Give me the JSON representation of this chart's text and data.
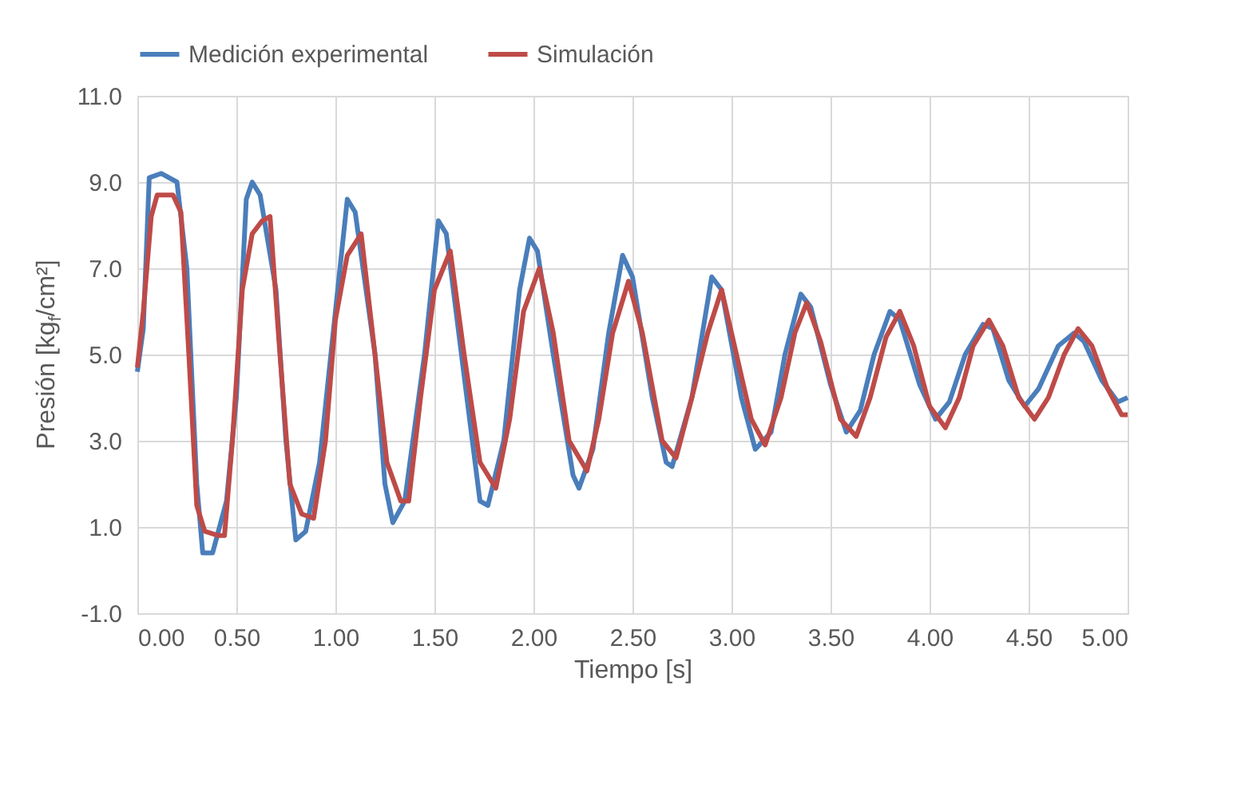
{
  "chart_data": {
    "type": "line",
    "xlabel": "Tiempo [s]",
    "ylabel": "Presión [kg$_{f}$/cm²]",
    "xlim": [
      0,
      5
    ],
    "ylim": [
      -1,
      11
    ],
    "xticks": [
      {
        "value": 0,
        "label": "0.00"
      },
      {
        "value": 0.5,
        "label": "0.50"
      },
      {
        "value": 1,
        "label": "1.00"
      },
      {
        "value": 1.5,
        "label": "1.50"
      },
      {
        "value": 2,
        "label": "2.00"
      },
      {
        "value": 2.5,
        "label": "2.50"
      },
      {
        "value": 3,
        "label": "3.00"
      },
      {
        "value": 3.5,
        "label": "3.50"
      },
      {
        "value": 4,
        "label": "4.00"
      },
      {
        "value": 4.5,
        "label": "4.50"
      },
      {
        "value": 5,
        "label": "5.00"
      }
    ],
    "yticks": [
      {
        "value": -1,
        "label": "-1.0"
      },
      {
        "value": 1,
        "label": "1.0"
      },
      {
        "value": 3,
        "label": "3.0"
      },
      {
        "value": 5,
        "label": "5.0"
      },
      {
        "value": 7,
        "label": "7.0"
      },
      {
        "value": 9,
        "label": "9.0"
      },
      {
        "value": 11,
        "label": "11.0"
      }
    ],
    "grid": true,
    "legend": "top",
    "marker": "none",
    "line_style": "solid",
    "series": [
      {
        "name": "Medición experimental",
        "color": "#4a7ebb",
        "x": [
          0,
          0.03,
          0.06,
          0.12,
          0.2,
          0.25,
          0.3,
          0.33,
          0.38,
          0.45,
          0.5,
          0.55,
          0.58,
          0.62,
          0.7,
          0.75,
          0.8,
          0.85,
          0.92,
          1.0,
          1.06,
          1.1,
          1.2,
          1.25,
          1.29,
          1.35,
          1.45,
          1.52,
          1.56,
          1.65,
          1.73,
          1.77,
          1.85,
          1.93,
          1.98,
          2.02,
          2.1,
          2.2,
          2.23,
          2.3,
          2.38,
          2.45,
          2.5,
          2.6,
          2.67,
          2.7,
          2.8,
          2.9,
          2.95,
          3.05,
          3.12,
          3.2,
          3.27,
          3.35,
          3.4,
          3.5,
          3.58,
          3.65,
          3.72,
          3.8,
          3.85,
          3.95,
          4.03,
          4.1,
          4.18,
          4.27,
          4.32,
          4.4,
          4.48,
          4.55,
          4.65,
          4.73,
          4.78,
          4.87,
          4.95,
          5.0
        ],
        "values": [
          4.6,
          5.6,
          9.1,
          9.2,
          9.0,
          7,
          2,
          0.4,
          0.4,
          1.6,
          4,
          8.6,
          9.0,
          8.7,
          6.5,
          3,
          0.7,
          0.9,
          2.5,
          6,
          8.6,
          8.3,
          5,
          2,
          1.1,
          1.6,
          5,
          8.1,
          7.8,
          4.5,
          1.6,
          1.5,
          3,
          6.5,
          7.7,
          7.4,
          5,
          2.2,
          1.9,
          2.8,
          5.5,
          7.3,
          6.8,
          4,
          2.5,
          2.4,
          4,
          6.8,
          6.5,
          4,
          2.8,
          3.2,
          5,
          6.4,
          6.1,
          4.3,
          3.2,
          3.7,
          5,
          6.0,
          5.8,
          4.3,
          3.5,
          3.9,
          5,
          5.7,
          5.6,
          4.4,
          3.8,
          4.2,
          5.2,
          5.5,
          5.3,
          4.4,
          3.9,
          4.0
        ]
      },
      {
        "name": "Simulación",
        "color": "#be4b48",
        "x": [
          0,
          0.03,
          0.07,
          0.1,
          0.18,
          0.22,
          0.26,
          0.3,
          0.34,
          0.41,
          0.44,
          0.48,
          0.53,
          0.58,
          0.63,
          0.67,
          0.72,
          0.77,
          0.83,
          0.89,
          0.95,
          1.0,
          1.06,
          1.13,
          1.2,
          1.26,
          1.33,
          1.37,
          1.43,
          1.5,
          1.58,
          1.65,
          1.73,
          1.81,
          1.88,
          1.95,
          2.03,
          2.1,
          2.18,
          2.27,
          2.33,
          2.4,
          2.48,
          2.55,
          2.65,
          2.72,
          2.8,
          2.88,
          2.95,
          3.0,
          3.1,
          3.17,
          3.25,
          3.32,
          3.38,
          3.45,
          3.55,
          3.63,
          3.7,
          3.78,
          3.85,
          3.92,
          4.0,
          4.08,
          4.15,
          4.22,
          4.3,
          4.37,
          4.45,
          4.53,
          4.6,
          4.68,
          4.75,
          4.82,
          4.9,
          4.97,
          5.0
        ],
        "values": [
          4.7,
          6,
          8.2,
          8.7,
          8.7,
          8.3,
          5,
          1.5,
          0.9,
          0.8,
          0.8,
          3,
          6.5,
          7.8,
          8.1,
          8.2,
          5,
          2,
          1.3,
          1.2,
          3,
          5.8,
          7.3,
          7.8,
          5,
          2.5,
          1.6,
          1.6,
          4,
          6.5,
          7.4,
          5,
          2.5,
          1.9,
          3.5,
          6,
          7.0,
          5.5,
          3,
          2.3,
          3.5,
          5.5,
          6.7,
          5.5,
          3,
          2.6,
          4,
          5.5,
          6.5,
          5.5,
          3.5,
          2.9,
          4,
          5.5,
          6.2,
          5.3,
          3.5,
          3.1,
          4,
          5.4,
          6.0,
          5.2,
          3.8,
          3.3,
          4,
          5.2,
          5.8,
          5.2,
          4,
          3.5,
          4,
          5,
          5.6,
          5.2,
          4.2,
          3.6,
          3.6
        ]
      }
    ]
  }
}
